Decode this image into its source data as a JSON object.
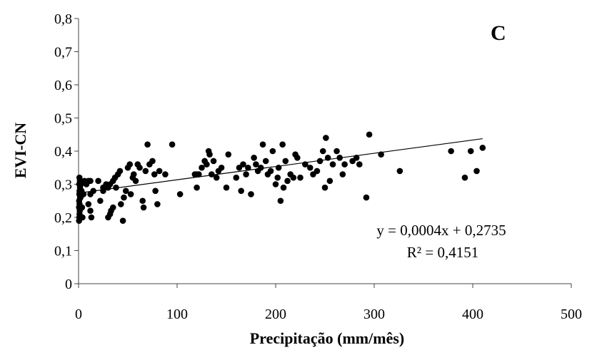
{
  "panel_label": "C",
  "chart_data": {
    "type": "scatter",
    "xlabel": "Precipitação (mm/mês)",
    "ylabel": "EVI-CN",
    "xlim": [
      0,
      500
    ],
    "ylim": [
      0,
      0.8
    ],
    "x_ticks": [
      0,
      100,
      200,
      300,
      400,
      500
    ],
    "y_ticks": [
      0,
      0.1,
      0.2,
      0.3,
      0.4,
      0.5,
      0.6,
      0.7,
      0.8
    ],
    "x_tick_labels": [
      "0",
      "100",
      "200",
      "300",
      "400",
      "500"
    ],
    "y_tick_labels": [
      "0",
      "0,1",
      "0,2",
      "0,3",
      "0,4",
      "0,5",
      "0,6",
      "0,7",
      "0,8"
    ],
    "grid": false,
    "marker_color": "#000000",
    "trendline": {
      "type": "linear",
      "slope": 0.0004,
      "intercept": 0.2735,
      "x_range": [
        0,
        410
      ],
      "equation": "y = 0,0004x + 0,2735",
      "r_squared": "R² = 0,4151"
    },
    "points": [
      [
        0.5,
        0.19
      ],
      [
        0.8,
        0.2
      ],
      [
        1,
        0.21
      ],
      [
        1.2,
        0.22
      ],
      [
        0.5,
        0.23
      ],
      [
        1,
        0.24
      ],
      [
        0.6,
        0.25
      ],
      [
        1.5,
        0.26
      ],
      [
        0.8,
        0.27
      ],
      [
        1,
        0.28
      ],
      [
        1.5,
        0.29
      ],
      [
        0.7,
        0.3
      ],
      [
        1.3,
        0.31
      ],
      [
        0.9,
        0.32
      ],
      [
        2,
        0.26
      ],
      [
        3,
        0.28
      ],
      [
        2.5,
        0.3
      ],
      [
        4,
        0.2
      ],
      [
        5,
        0.27
      ],
      [
        3.5,
        0.23
      ],
      [
        6,
        0.31
      ],
      [
        8,
        0.3
      ],
      [
        10,
        0.31
      ],
      [
        12,
        0.31
      ],
      [
        10,
        0.24
      ],
      [
        12,
        0.22
      ],
      [
        13,
        0.2
      ],
      [
        15,
        0.28
      ],
      [
        12,
        0.27
      ],
      [
        20,
        0.31
      ],
      [
        22,
        0.25
      ],
      [
        25,
        0.28
      ],
      [
        25,
        0.29
      ],
      [
        28,
        0.3
      ],
      [
        30,
        0.2
      ],
      [
        32,
        0.21
      ],
      [
        33,
        0.22
      ],
      [
        35,
        0.23
      ],
      [
        30,
        0.29
      ],
      [
        32,
        0.3
      ],
      [
        35,
        0.31
      ],
      [
        37,
        0.32
      ],
      [
        38,
        0.29
      ],
      [
        40,
        0.33
      ],
      [
        42,
        0.34
      ],
      [
        43,
        0.24
      ],
      [
        45,
        0.19
      ],
      [
        46,
        0.26
      ],
      [
        48,
        0.28
      ],
      [
        50,
        0.35
      ],
      [
        52,
        0.36
      ],
      [
        53,
        0.27
      ],
      [
        55,
        0.32
      ],
      [
        56,
        0.33
      ],
      [
        58,
        0.31
      ],
      [
        60,
        0.36
      ],
      [
        62,
        0.35
      ],
      [
        65,
        0.25
      ],
      [
        66,
        0.23
      ],
      [
        68,
        0.34
      ],
      [
        70,
        0.42
      ],
      [
        72,
        0.36
      ],
      [
        75,
        0.37
      ],
      [
        77,
        0.33
      ],
      [
        78,
        0.28
      ],
      [
        80,
        0.24
      ],
      [
        82,
        0.34
      ],
      [
        88,
        0.33
      ],
      [
        95,
        0.42
      ],
      [
        103,
        0.27
      ],
      [
        118,
        0.33
      ],
      [
        120,
        0.33
      ],
      [
        120,
        0.29
      ],
      [
        122,
        0.33
      ],
      [
        125,
        0.35
      ],
      [
        128,
        0.37
      ],
      [
        130,
        0.36
      ],
      [
        132,
        0.4
      ],
      [
        133,
        0.39
      ],
      [
        135,
        0.33
      ],
      [
        137,
        0.37
      ],
      [
        140,
        0.32
      ],
      [
        142,
        0.34
      ],
      [
        145,
        0.35
      ],
      [
        150,
        0.29
      ],
      [
        152,
        0.39
      ],
      [
        160,
        0.32
      ],
      [
        163,
        0.35
      ],
      [
        165,
        0.28
      ],
      [
        167,
        0.36
      ],
      [
        170,
        0.33
      ],
      [
        172,
        0.35
      ],
      [
        175,
        0.27
      ],
      [
        178,
        0.38
      ],
      [
        180,
        0.36
      ],
      [
        182,
        0.34
      ],
      [
        185,
        0.35
      ],
      [
        187,
        0.42
      ],
      [
        190,
        0.37
      ],
      [
        192,
        0.33
      ],
      [
        195,
        0.34
      ],
      [
        197,
        0.4
      ],
      [
        200,
        0.3
      ],
      [
        202,
        0.32
      ],
      [
        203,
        0.35
      ],
      [
        205,
        0.25
      ],
      [
        207,
        0.42
      ],
      [
        208,
        0.29
      ],
      [
        210,
        0.37
      ],
      [
        212,
        0.31
      ],
      [
        215,
        0.33
      ],
      [
        218,
        0.32
      ],
      [
        220,
        0.39
      ],
      [
        222,
        0.38
      ],
      [
        225,
        0.32
      ],
      [
        230,
        0.36
      ],
      [
        235,
        0.35
      ],
      [
        238,
        0.33
      ],
      [
        242,
        0.34
      ],
      [
        245,
        0.37
      ],
      [
        248,
        0.4
      ],
      [
        250,
        0.29
      ],
      [
        251,
        0.44
      ],
      [
        253,
        0.38
      ],
      [
        255,
        0.31
      ],
      [
        258,
        0.36
      ],
      [
        262,
        0.4
      ],
      [
        265,
        0.38
      ],
      [
        268,
        0.33
      ],
      [
        270,
        0.36
      ],
      [
        278,
        0.37
      ],
      [
        282,
        0.38
      ],
      [
        285,
        0.36
      ],
      [
        292,
        0.26
      ],
      [
        295,
        0.45
      ],
      [
        307,
        0.39
      ],
      [
        326,
        0.34
      ],
      [
        378,
        0.4
      ],
      [
        392,
        0.32
      ],
      [
        398,
        0.4
      ],
      [
        404,
        0.34
      ],
      [
        410,
        0.41
      ]
    ]
  }
}
